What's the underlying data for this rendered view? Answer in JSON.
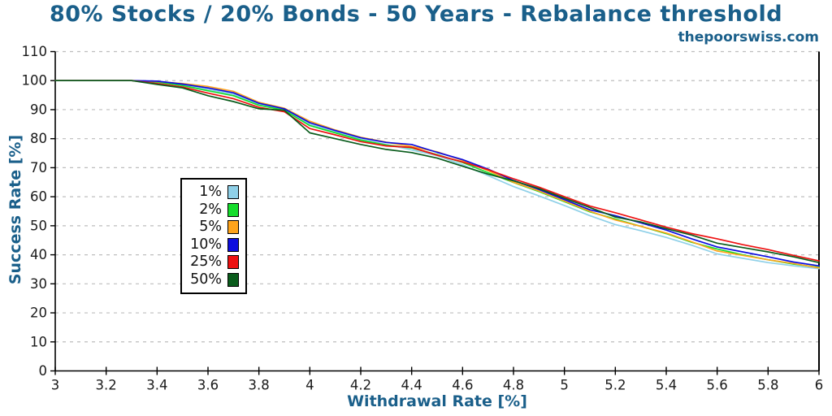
{
  "chart_data": {
    "type": "line",
    "title": "80% Stocks / 20% Bonds - 50 Years - Rebalance threshold",
    "watermark": "thepoorswiss.com",
    "xlabel": "Withdrawal Rate [%]",
    "ylabel": "Success Rate [%]",
    "xlim": [
      3,
      6
    ],
    "ylim": [
      0,
      110
    ],
    "x_ticks": [
      3,
      3.2,
      3.4,
      3.6,
      3.8,
      4,
      4.2,
      4.4,
      4.6,
      4.8,
      5,
      5.2,
      5.4,
      5.6,
      5.8,
      6
    ],
    "x_tick_labels": [
      "3",
      "3.2",
      "3.4",
      "3.6",
      "3.8",
      "4",
      "4.2",
      "4.4",
      "4.6",
      "4.8",
      "5",
      "5.2",
      "5.4",
      "5.6",
      "5.8",
      "6"
    ],
    "y_ticks": [
      0,
      10,
      20,
      30,
      40,
      50,
      60,
      70,
      80,
      90,
      100,
      110
    ],
    "y_tick_labels": [
      "0",
      "10",
      "20",
      "30",
      "40",
      "50",
      "60",
      "70",
      "80",
      "90",
      "100",
      "110"
    ],
    "grid": "horizontal-dashed",
    "legend_position": "left-center-inside",
    "colors": {
      "accent": "#1a5f8a",
      "axis": "#000000",
      "grid": "#bdbdbd",
      "tick_text": "#1a1a1a"
    },
    "x": [
      3.0,
      3.1,
      3.2,
      3.3,
      3.4,
      3.5,
      3.6,
      3.7,
      3.8,
      3.9,
      4.0,
      4.1,
      4.2,
      4.3,
      4.4,
      4.5,
      4.6,
      4.7,
      4.8,
      4.9,
      5.0,
      5.1,
      5.2,
      5.3,
      5.4,
      5.5,
      5.6,
      5.7,
      5.8,
      5.9,
      6.0
    ],
    "series": [
      {
        "name": "1%",
        "color": "#8fd0e8",
        "values": [
          100,
          100,
          100,
          100,
          99.5,
          98.5,
          97.0,
          95.3,
          91.8,
          90.0,
          85.0,
          82.3,
          79.8,
          78.0,
          76.1,
          74.2,
          71.0,
          67.3,
          63.5,
          60.3,
          57.0,
          53.5,
          50.4,
          48.3,
          46.0,
          43.3,
          40.3,
          38.8,
          37.3,
          36.2,
          35.2
        ]
      },
      {
        "name": "2%",
        "color": "#15dd2c",
        "values": [
          100,
          100,
          100,
          100,
          99.5,
          98.3,
          96.5,
          94.8,
          91.5,
          89.8,
          84.5,
          82.0,
          79.5,
          77.8,
          76.8,
          74.5,
          71.8,
          68.3,
          64.9,
          61.8,
          58.3,
          54.8,
          52.3,
          49.8,
          47.3,
          44.3,
          42.0,
          40.0,
          38.3,
          36.8,
          35.7
        ]
      },
      {
        "name": "5%",
        "color": "#ffa41b",
        "values": [
          100,
          100,
          100,
          100,
          99.7,
          99.0,
          98.0,
          96.3,
          92.5,
          90.5,
          86.0,
          83.0,
          80.5,
          78.8,
          77.3,
          75.5,
          72.5,
          69.0,
          65.0,
          62.0,
          58.5,
          55.0,
          52.0,
          49.8,
          47.5,
          44.5,
          41.3,
          39.8,
          38.3,
          37.0,
          35.5
        ]
      },
      {
        "name": "10%",
        "color": "#0d0ddf",
        "values": [
          100,
          100,
          100,
          100,
          99.8,
          98.8,
          97.5,
          95.8,
          92.2,
          90.3,
          85.5,
          82.8,
          80.3,
          78.7,
          78.0,
          75.3,
          72.8,
          69.5,
          65.6,
          62.5,
          59.0,
          55.5,
          53.5,
          51.0,
          48.5,
          45.5,
          42.7,
          41.0,
          39.3,
          37.5,
          36.2
        ]
      },
      {
        "name": "25%",
        "color": "#ee1111",
        "values": [
          100,
          100,
          100,
          100,
          99.0,
          97.8,
          95.7,
          93.8,
          90.8,
          89.3,
          83.5,
          81.3,
          79.0,
          77.5,
          77.0,
          74.3,
          72.0,
          69.3,
          66.2,
          63.3,
          60.0,
          56.8,
          54.5,
          52.0,
          49.5,
          47.3,
          45.5,
          43.5,
          41.8,
          39.8,
          37.9
        ]
      },
      {
        "name": "50%",
        "color": "#0a5c1c",
        "values": [
          100,
          100,
          100,
          100,
          98.7,
          97.5,
          94.8,
          92.8,
          90.3,
          89.8,
          82.0,
          80.0,
          78.0,
          76.3,
          75.2,
          73.3,
          70.5,
          67.8,
          65.5,
          62.8,
          59.5,
          56.3,
          53.0,
          51.3,
          49.0,
          46.8,
          44.0,
          42.5,
          41.0,
          39.3,
          37.3
        ]
      }
    ]
  }
}
